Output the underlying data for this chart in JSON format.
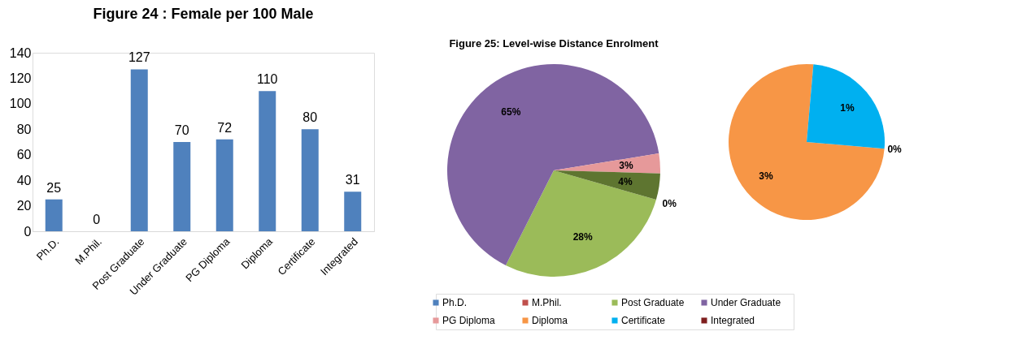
{
  "chart_data": [
    {
      "type": "bar",
      "title": "Figure 24 : Female per 100 Male",
      "categories": [
        "Ph.D.",
        "M.Phil.",
        "Post Graduate",
        "Under Graduate",
        "PG Diploma",
        "Diploma",
        "Certificate",
        "Integrated"
      ],
      "values": [
        25,
        0,
        127,
        70,
        72,
        110,
        80,
        31
      ],
      "color": "#4f81bd",
      "ylim": [
        0,
        140
      ],
      "yticks": [
        0,
        20,
        40,
        60,
        80,
        100,
        120,
        140
      ],
      "grid": false,
      "data_labels": true
    },
    {
      "type": "pie",
      "title": "Figure 25: Level-wise Distance Enrolment",
      "categories": [
        "Ph.D.",
        "M.Phil.",
        "Post Graduate",
        "Under Graduate",
        "PG Diploma",
        null
      ],
      "values": [
        0,
        0,
        28,
        65,
        3,
        4
      ],
      "colors": [
        "#4f81bd",
        "#c0504d",
        "#9bbb59",
        "#8064a2",
        "#e6999a",
        "#5e7530"
      ],
      "value_labels": [
        "0%",
        null,
        "28%",
        "65%",
        "3%",
        "4%"
      ],
      "legend": "bottom"
    },
    {
      "type": "pie",
      "categories": [
        "Diploma",
        "Certificate",
        "Integrated"
      ],
      "values": [
        3,
        1,
        0
      ],
      "colors": [
        "#f79646",
        "#00b0f0",
        "#7f1f1f"
      ],
      "value_labels": [
        "3%",
        "1%",
        "0%"
      ],
      "legend": "bottom"
    }
  ]
}
